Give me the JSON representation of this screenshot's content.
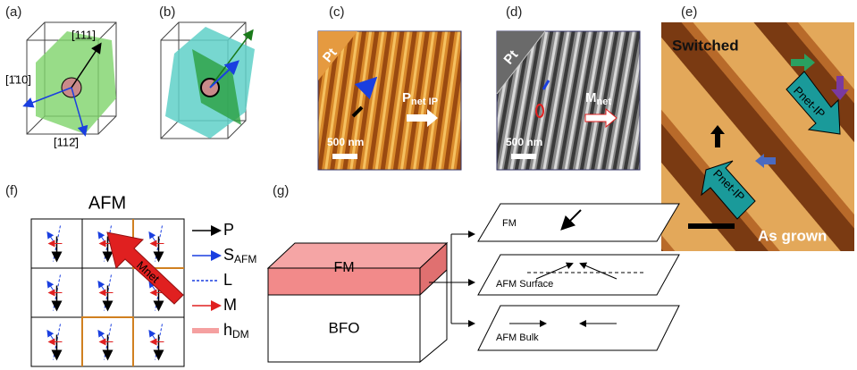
{
  "panels": {
    "a": {
      "label": "(a)",
      "dir1": "[111]",
      "dir2": "[1̄10]",
      "dir3": "[112̄]"
    },
    "b": {
      "label": "(b)"
    },
    "c": {
      "label": "(c)",
      "substrate": "Pt",
      "scale": "500 nm",
      "arrow": {
        "main": "P",
        "sub": "net IP"
      }
    },
    "d": {
      "label": "(d)",
      "substrate": "Pt",
      "scale": "500 nm",
      "arrow": {
        "main": "M",
        "sub": "net"
      }
    },
    "e": {
      "label": "(e)",
      "top": "Switched",
      "bottom": "As grown",
      "arrow1": "Pnet-IP",
      "arrow2": "Pnet-IP"
    },
    "f": {
      "label": "(f)",
      "title": "AFM",
      "big_arrow": "Mnet",
      "legend": [
        {
          "main": "P",
          "sub": ""
        },
        {
          "main": "S",
          "sub": "AFM"
        },
        {
          "main": "L",
          "sub": ""
        },
        {
          "main": "M",
          "sub": ""
        },
        {
          "main": "h",
          "sub": "DM"
        }
      ]
    },
    "g": {
      "label": "(g)",
      "layer_top": "FM",
      "layer_bottom": "BFO",
      "plane1": "FM",
      "plane2": "AFM Surface",
      "plane3": "AFM Bulk"
    }
  }
}
